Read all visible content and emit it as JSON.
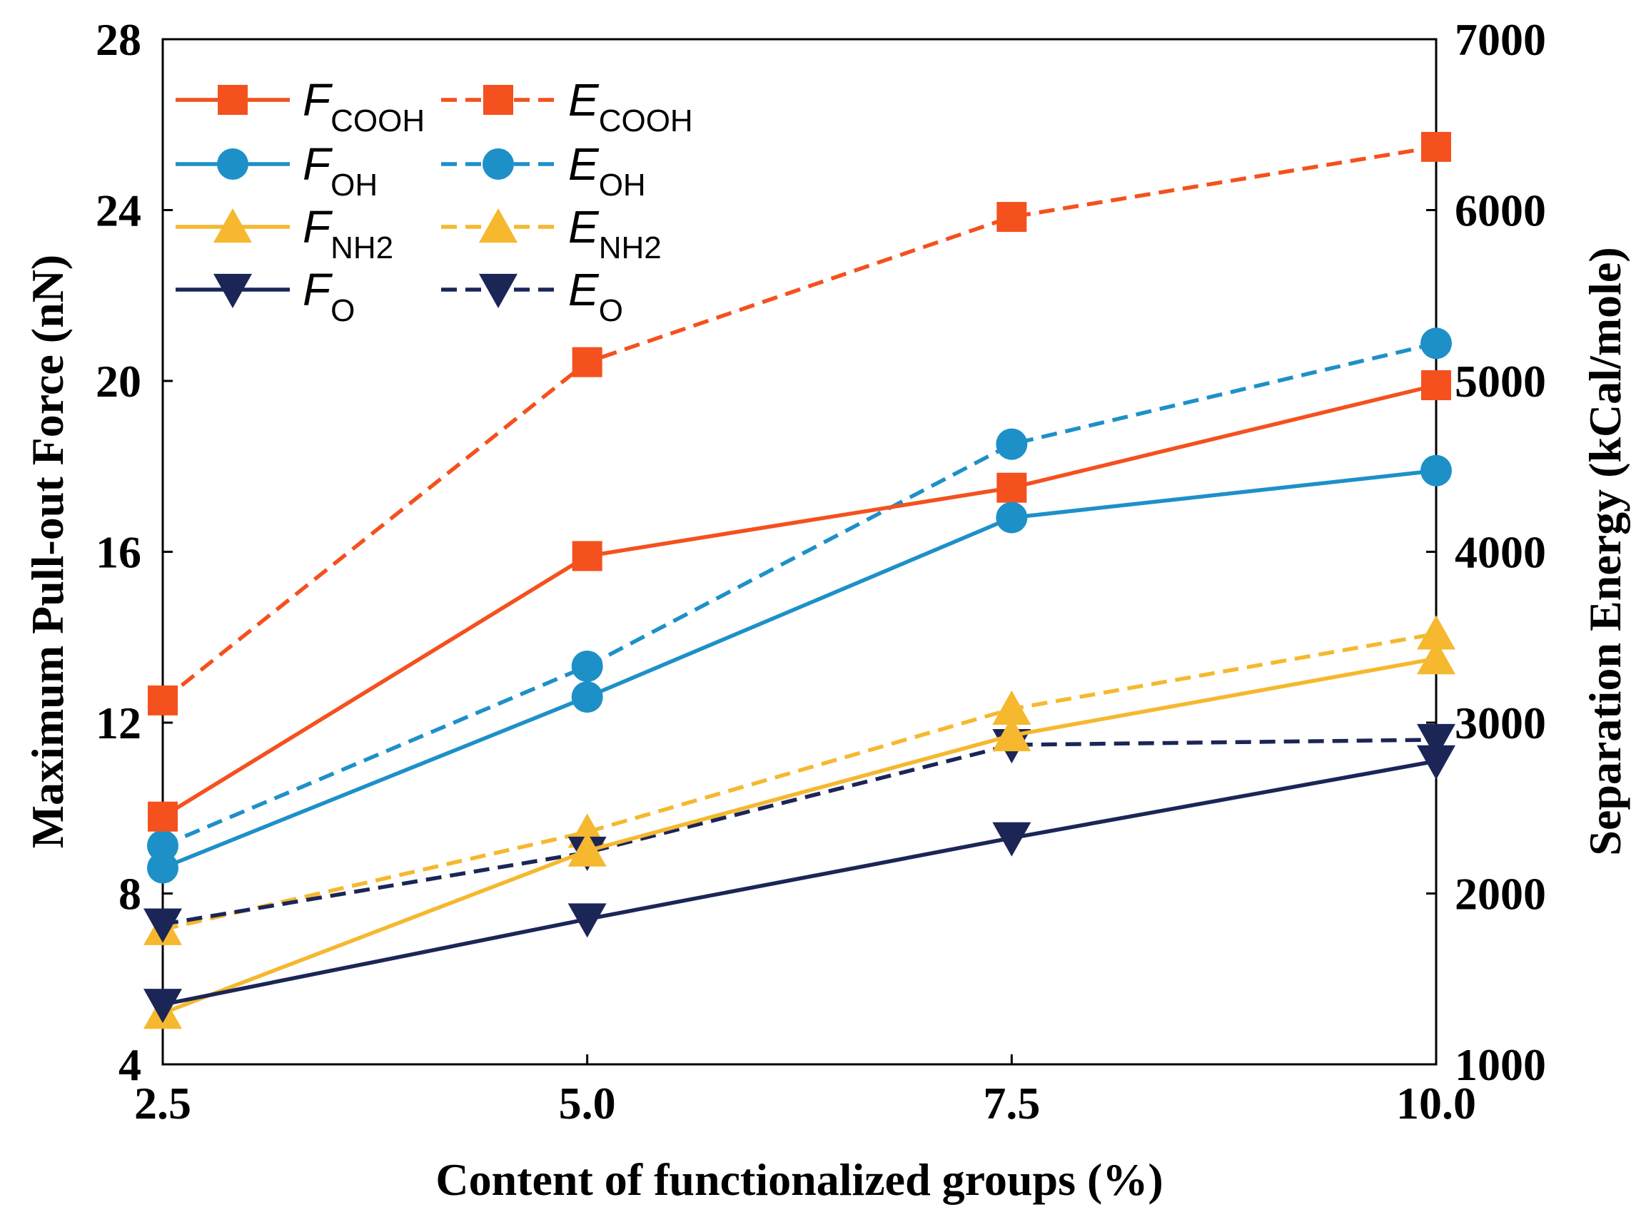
{
  "chart_data": {
    "type": "line",
    "x": [
      2.5,
      5.0,
      7.5,
      10.0
    ],
    "x_tick_labels": [
      "2.5",
      "5.0",
      "7.5",
      "10.0"
    ],
    "xlabel": "Content of functionalized groups (%)",
    "xlim": [
      2.5,
      10.0
    ],
    "ylabel_left": "Maximum Pull-out Force (nN)",
    "ylim_left": [
      4,
      28
    ],
    "y_left_ticks": [
      4,
      8,
      12,
      16,
      20,
      24,
      28
    ],
    "ylabel_right": "Separation Energy (kCal/mole)",
    "ylim_right": [
      1000,
      7000
    ],
    "y_right_ticks": [
      1000,
      2000,
      3000,
      4000,
      5000,
      6000,
      7000
    ],
    "legend_position": "top-left",
    "series": [
      {
        "id": "f_cooh",
        "symbol": "F",
        "subscript": "COOH",
        "axis": "left",
        "marker": "square",
        "dashed": false,
        "color": "#f4511e",
        "values": [
          9.8,
          15.9,
          17.5,
          19.9
        ]
      },
      {
        "id": "e_cooh",
        "symbol": "E",
        "subscript": "COOH",
        "axis": "right",
        "marker": "square",
        "dashed": true,
        "color": "#f4511e",
        "values": [
          3130,
          5110,
          5960,
          6370
        ]
      },
      {
        "id": "f_oh",
        "symbol": "F",
        "subscript": "OH",
        "axis": "left",
        "marker": "circle",
        "dashed": false,
        "color": "#1e90c8",
        "values": [
          8.6,
          12.6,
          16.8,
          17.9
        ]
      },
      {
        "id": "e_oh",
        "symbol": "E",
        "subscript": "OH",
        "axis": "right",
        "marker": "circle",
        "dashed": true,
        "color": "#1e90c8",
        "values": [
          2280,
          3330,
          4630,
          5220
        ]
      },
      {
        "id": "f_nh2",
        "symbol": "F",
        "subscript": "NH2",
        "axis": "left",
        "marker": "triangle-up",
        "dashed": false,
        "color": "#f5b82e",
        "values": [
          5.2,
          9.0,
          11.7,
          13.5
        ]
      },
      {
        "id": "e_nh2",
        "symbol": "E",
        "subscript": "NH2",
        "axis": "right",
        "marker": "triangle-up",
        "dashed": true,
        "color": "#f5b82e",
        "values": [
          1790,
          2360,
          3080,
          3520
        ]
      },
      {
        "id": "f_o",
        "symbol": "F",
        "subscript": "O",
        "axis": "left",
        "marker": "triangle-down",
        "dashed": false,
        "color": "#1b2657",
        "values": [
          5.4,
          7.4,
          9.3,
          11.1
        ]
      },
      {
        "id": "e_o",
        "symbol": "E",
        "subscript": "O",
        "axis": "right",
        "marker": "triangle-down",
        "dashed": true,
        "color": "#1b2657",
        "values": [
          1820,
          2240,
          2870,
          2900
        ]
      }
    ]
  }
}
